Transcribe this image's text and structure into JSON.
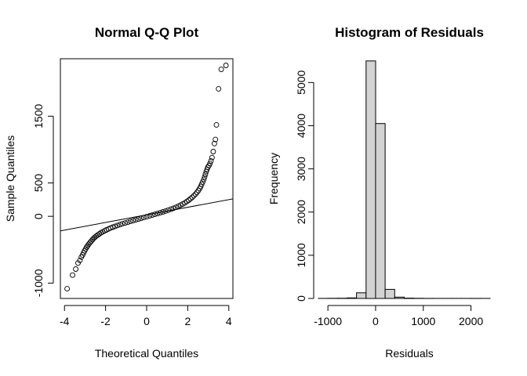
{
  "chart_data": [
    {
      "type": "scatter",
      "title": "Normal Q-Q Plot",
      "xlabel": "Theoretical Quantiles",
      "ylabel": "Sample Quantiles",
      "xlim": [
        -4.2,
        4.2
      ],
      "ylim": [
        -1230,
        2360
      ],
      "xticks": [
        -4,
        -2,
        0,
        2,
        4
      ],
      "yticks": [
        -1000,
        0,
        500,
        1500
      ],
      "reference_line": {
        "intercept": 22,
        "slope": 57
      },
      "points": [
        [
          -3.87,
          -1085
        ],
        [
          -3.61,
          -880
        ],
        [
          -3.45,
          -790
        ],
        [
          -3.34,
          -700
        ],
        [
          -3.25,
          -660
        ],
        [
          -3.18,
          -610
        ],
        [
          -3.12,
          -580
        ],
        [
          -3.07,
          -545
        ],
        [
          -3.02,
          -515
        ],
        [
          -2.97,
          -490
        ],
        [
          -2.92,
          -462
        ],
        [
          -2.87,
          -440
        ],
        [
          -2.82,
          -418
        ],
        [
          -2.76,
          -395
        ],
        [
          -2.7,
          -372
        ],
        [
          -2.64,
          -350
        ],
        [
          -2.58,
          -330
        ],
        [
          -2.52,
          -312
        ],
        [
          -2.45,
          -295
        ],
        [
          -2.38,
          -278
        ],
        [
          -2.3,
          -262
        ],
        [
          -2.22,
          -246
        ],
        [
          -2.14,
          -232
        ],
        [
          -2.05,
          -217
        ],
        [
          -1.96,
          -203
        ],
        [
          -1.86,
          -189
        ],
        [
          -1.76,
          -175
        ],
        [
          -1.65,
          -162
        ],
        [
          -1.54,
          -149
        ],
        [
          -1.42,
          -136
        ],
        [
          -1.3,
          -124
        ],
        [
          -1.18,
          -112
        ],
        [
          -1.05,
          -100
        ],
        [
          -0.92,
          -88
        ],
        [
          -0.79,
          -76
        ],
        [
          -0.66,
          -65
        ],
        [
          -0.53,
          -53
        ],
        [
          -0.4,
          -42
        ],
        [
          -0.27,
          -30
        ],
        [
          -0.14,
          -18
        ],
        [
          0.0,
          -6
        ],
        [
          0.14,
          6
        ],
        [
          0.27,
          18
        ],
        [
          0.4,
          30
        ],
        [
          0.53,
          42
        ],
        [
          0.66,
          54
        ],
        [
          0.79,
          66
        ],
        [
          0.92,
          79
        ],
        [
          1.05,
          92
        ],
        [
          1.18,
          106
        ],
        [
          1.3,
          120
        ],
        [
          1.42,
          135
        ],
        [
          1.54,
          151
        ],
        [
          1.65,
          168
        ],
        [
          1.76,
          185
        ],
        [
          1.86,
          203
        ],
        [
          1.96,
          222
        ],
        [
          2.05,
          242
        ],
        [
          2.14,
          263
        ],
        [
          2.22,
          285
        ],
        [
          2.3,
          308
        ],
        [
          2.38,
          333
        ],
        [
          2.45,
          359
        ],
        [
          2.52,
          387
        ],
        [
          2.58,
          416
        ],
        [
          2.63,
          447
        ],
        [
          2.68,
          480
        ],
        [
          2.73,
          515
        ],
        [
          2.78,
          552
        ],
        [
          2.82,
          590
        ],
        [
          2.86,
          630
        ],
        [
          2.9,
          670
        ],
        [
          2.94,
          705
        ],
        [
          2.98,
          735
        ],
        [
          3.03,
          760
        ],
        [
          3.08,
          790
        ],
        [
          3.13,
          830
        ],
        [
          3.18,
          880
        ],
        [
          3.24,
          970
        ],
        [
          3.3,
          1090
        ],
        [
          3.35,
          1150
        ],
        [
          3.4,
          1370
        ],
        [
          3.5,
          1910
        ],
        [
          3.63,
          2200
        ],
        [
          3.86,
          2260
        ]
      ]
    },
    {
      "type": "bar",
      "title": "Histogram of Residuals",
      "xlabel": "Residuals",
      "ylabel": "Frequency",
      "xlim": [
        -1150,
        2500
      ],
      "ylim": [
        0,
        5550
      ],
      "xticks": [
        -1000,
        0,
        1000,
        2000
      ],
      "yticks": [
        0,
        1000,
        2000,
        3000,
        4000,
        5000
      ],
      "bin_width": 200,
      "bin_starts": [
        -1200,
        -1000,
        -800,
        -600,
        -400,
        -200,
        0,
        200,
        400,
        600,
        800,
        1000,
        1200,
        1400,
        1600,
        1800,
        2000,
        2200
      ],
      "values": [
        1,
        3,
        5,
        12,
        130,
        5500,
        4050,
        210,
        30,
        8,
        4,
        2,
        1,
        1,
        1,
        1,
        2,
        1
      ]
    }
  ]
}
